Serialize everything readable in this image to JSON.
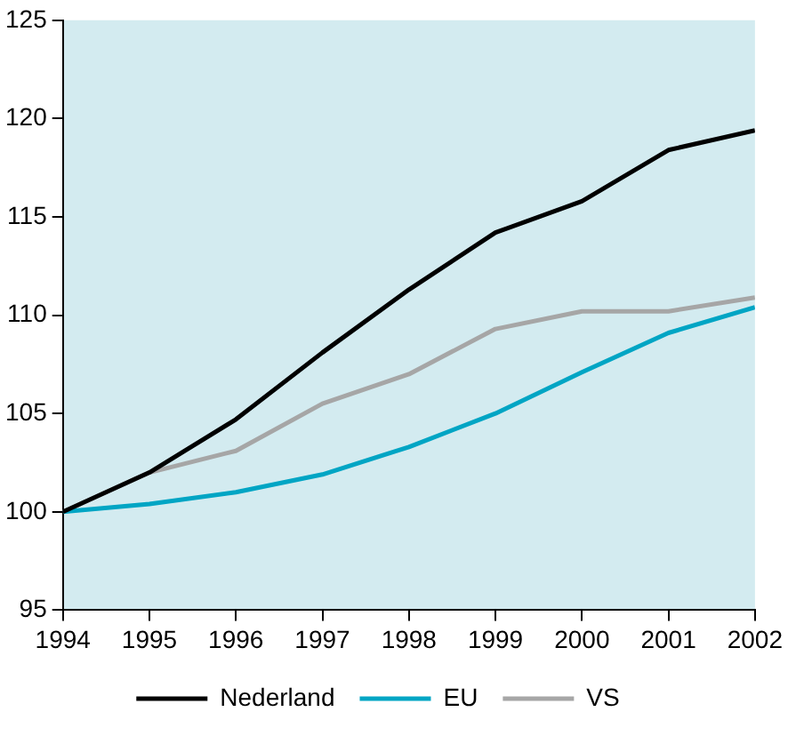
{
  "chart_data": {
    "type": "line",
    "x": [
      1994,
      1995,
      1996,
      1997,
      1998,
      1999,
      2000,
      2001,
      2002
    ],
    "series": [
      {
        "name": "Nederland",
        "color": "#000000",
        "values": [
          100,
          102,
          104.7,
          108.1,
          111.3,
          114.2,
          115.8,
          118.4,
          119.4
        ]
      },
      {
        "name": "EU",
        "color": "#00a5c4",
        "values": [
          100,
          100.4,
          101,
          101.9,
          103.3,
          105,
          107.1,
          109.1,
          110.4
        ]
      },
      {
        "name": "VS",
        "color": "#a6a6a6",
        "values": [
          100,
          102,
          103.1,
          105.5,
          107,
          109.3,
          110.2,
          110.2,
          110.9
        ]
      }
    ],
    "xlim": [
      1994,
      2002
    ],
    "xticks": [
      1994,
      1995,
      1996,
      1997,
      1998,
      1999,
      2000,
      2001,
      2002
    ],
    "ylim": [
      95,
      125
    ],
    "yticks": [
      95,
      100,
      105,
      110,
      115,
      120,
      125
    ],
    "grid": false,
    "legend": "bottom",
    "marker": "none",
    "line_style": "solid"
  }
}
